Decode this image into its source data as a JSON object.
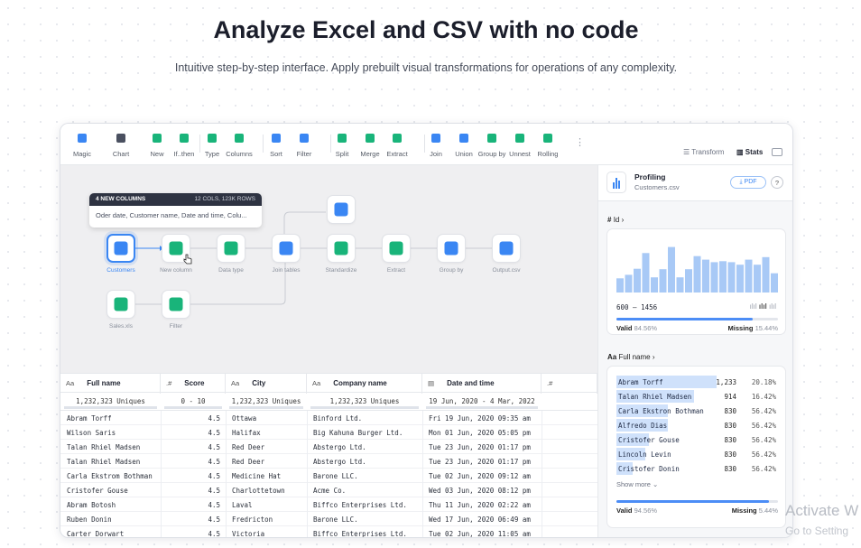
{
  "hero": {
    "title": "Analyze Excel and CSV with no code",
    "subtitle": "Intuitive step-by-step interface. Apply prebuilt visual transformations for operations of any complexity."
  },
  "toolbar": {
    "tools": [
      {
        "name": "magic",
        "label": "Magic",
        "icon": "magic-icon",
        "color": "#3a86f3"
      },
      {
        "name": "chart",
        "label": "Chart",
        "icon": "chart-icon",
        "color": "#4a5060"
      },
      {
        "name": "new",
        "label": "New",
        "icon": "new-column-icon",
        "color": "#19b47a"
      },
      {
        "name": "ifthen",
        "label": "If..then",
        "icon": "if-then-icon",
        "color": "#19b47a"
      },
      {
        "name": "type",
        "label": "Type",
        "icon": "type-icon",
        "color": "#19b47a"
      },
      {
        "name": "columns",
        "label": "Columns",
        "icon": "columns-icon",
        "color": "#19b47a"
      },
      {
        "name": "sort",
        "label": "Sort",
        "icon": "sort-icon",
        "color": "#3a86f3"
      },
      {
        "name": "filter",
        "label": "Filter",
        "icon": "filter-icon",
        "color": "#3a86f3"
      },
      {
        "name": "split",
        "label": "Split",
        "icon": "split-icon",
        "color": "#19b47a"
      },
      {
        "name": "merge",
        "label": "Merge",
        "icon": "merge-icon",
        "color": "#19b47a"
      },
      {
        "name": "extract",
        "label": "Extract",
        "icon": "extract-icon",
        "color": "#19b47a"
      },
      {
        "name": "join",
        "label": "Join",
        "icon": "join-icon",
        "color": "#3a86f3"
      },
      {
        "name": "union",
        "label": "Union",
        "icon": "union-icon",
        "color": "#3a86f3"
      },
      {
        "name": "groupby",
        "label": "Group by",
        "icon": "group-by-icon",
        "color": "#19b47a"
      },
      {
        "name": "unnest",
        "label": "Unnest",
        "icon": "unnest-icon",
        "color": "#19b47a"
      },
      {
        "name": "rolling",
        "label": "Rolling",
        "icon": "rolling-icon",
        "color": "#19b47a"
      }
    ],
    "transform_label": "Transform",
    "stats_label": "Stats"
  },
  "tooltip": {
    "title": "4 NEW COLUMNS",
    "meta": "12 COLS, 123K ROWS",
    "body": "Oder date, Customer name, Date and time, Colu..."
  },
  "flow": {
    "nodes": [
      {
        "id": "customers",
        "label": "Customers",
        "icon": "csv-file-icon",
        "color": "#3a86f3"
      },
      {
        "id": "new_column",
        "label": "New column",
        "icon": "new-column-icon",
        "color": "#19b47a"
      },
      {
        "id": "data_type",
        "label": "Data type",
        "icon": "type-icon",
        "color": "#19b47a"
      },
      {
        "id": "join_tables",
        "label": "Join tables",
        "icon": "join-icon",
        "color": "#3a86f3"
      },
      {
        "id": "standardize",
        "label": "Standardize",
        "icon": "standardize-icon",
        "color": "#19b47a"
      },
      {
        "id": "extract",
        "label": "Extract",
        "icon": "extract-icon",
        "color": "#19b47a"
      },
      {
        "id": "group_by",
        "label": "Group by",
        "icon": "group-by-icon",
        "color": "#3a86f3"
      },
      {
        "id": "output",
        "label": "Output.csv",
        "icon": "csv-file-icon",
        "color": "#3a86f3"
      },
      {
        "id": "sales",
        "label": "Sales.xls",
        "icon": "xls-file-icon",
        "color": "#19b47a"
      },
      {
        "id": "filter",
        "label": "Filter",
        "icon": "filter-icon",
        "color": "#19b47a"
      },
      {
        "id": "branch_csv",
        "label": "",
        "icon": "csv-file-icon",
        "color": "#3a86f3"
      }
    ]
  },
  "table": {
    "columns": [
      {
        "type": "Aa",
        "name": "Full name",
        "uniques": "1,232,323 Uniques"
      },
      {
        "type": ".#",
        "name": "Score",
        "uniques": "0 - 10"
      },
      {
        "type": "Aa",
        "name": "City",
        "uniques": "1,232,323 Uniques"
      },
      {
        "type": "Aa",
        "name": "Company name",
        "uniques": "1,232,323 Uniques"
      },
      {
        "type": "date-icon",
        "name": "Date and time",
        "uniques": "19 Jun, 2020 - 4 Mar, 2022"
      },
      {
        "type": ".#",
        "name": "",
        "uniques": ""
      }
    ],
    "rows": [
      [
        "Abram Torff",
        "4.5",
        "Ottawa",
        "Binford Ltd.",
        "Fri 19 Jun, 2020 09:35 am"
      ],
      [
        "Wilson Saris",
        "4.5",
        "Halifax",
        "Big Kahuna Burger Ltd.",
        "Mon 01 Jun, 2020 05:05 pm"
      ],
      [
        "Talan Rhiel Madsen",
        "4.5",
        "Red Deer",
        "Abstergo Ltd.",
        "Tue 23 Jun, 2020 01:17 pm"
      ],
      [
        "Talan Rhiel Madsen",
        "4.5",
        "Red Deer",
        "Abstergo Ltd.",
        "Tue 23 Jun, 2020 01:17 pm"
      ],
      [
        "Carla Ekstrom Bothman",
        "4.5",
        "Medicine Hat",
        "Barone LLC.",
        "Tue 02 Jun, 2020 09:12 am"
      ],
      [
        "Cristofer Gouse",
        "4.5",
        "Charlottetown",
        "Acme Co.",
        "Wed 03 Jun, 2020 08:12 pm"
      ],
      [
        "Abram Botosh",
        "4.5",
        "Laval",
        "Biffco Enterprises Ltd.",
        "Thu 11 Jun, 2020 02:22 am"
      ],
      [
        "Ruben Donin",
        "4.5",
        "Fredricton",
        "Barone LLC.",
        "Wed 17 Jun, 2020 06:49 am"
      ],
      [
        "Carter Dorwart",
        "4.5",
        "Victoria",
        "Biffco Enterprises Ltd.",
        "Tue 02 Jun, 2020 11:05 am"
      ]
    ]
  },
  "profiling": {
    "title": "Profiling",
    "file": "Customers.csv",
    "pdf_label": "PDF",
    "help_label": "?",
    "id_section": {
      "type": "#",
      "label": "Id",
      "histogram": [
        0.28,
        0.35,
        0.47,
        0.78,
        0.3,
        0.46,
        0.9,
        0.3,
        0.46,
        0.72,
        0.65,
        0.6,
        0.62,
        0.6,
        0.55,
        0.65,
        0.55,
        0.7,
        0.38
      ],
      "range": "600 – 1456",
      "valid_label": "Valid",
      "valid_value": "84.56%",
      "valid_fraction": 0.8456,
      "missing_label": "Missing",
      "missing_value": "15.44%"
    },
    "name_section": {
      "type": "Aa",
      "label": "Full name",
      "items": [
        {
          "name": "Abram Torff",
          "count": "1,233",
          "pct": "20.18%",
          "fraction": 0.62
        },
        {
          "name": "Talan Rhiel Madsen",
          "count": "914",
          "pct": "16.42%",
          "fraction": 0.48
        },
        {
          "name": "Carla Ekstron Bothman",
          "count": "830",
          "pct": "56.42%",
          "fraction": 0.32
        },
        {
          "name": "Alfredo Dias",
          "count": "830",
          "pct": "56.42%",
          "fraction": 0.32
        },
        {
          "name": "Cristofer Gouse",
          "count": "830",
          "pct": "56.42%",
          "fraction": 0.2
        },
        {
          "name": "Lincoln Levin",
          "count": "830",
          "pct": "56.42%",
          "fraction": 0.18
        },
        {
          "name": "Cristofer Donin",
          "count": "830",
          "pct": "56.42%",
          "fraction": 0.1
        }
      ],
      "show_more": "Show more",
      "valid_label": "Valid",
      "valid_value": "94.56%",
      "valid_fraction": 0.9456,
      "missing_label": "Missing",
      "missing_value": "5.44%"
    }
  },
  "watermark": {
    "line1": "Activate W",
    "line2": "Go to Setting"
  }
}
